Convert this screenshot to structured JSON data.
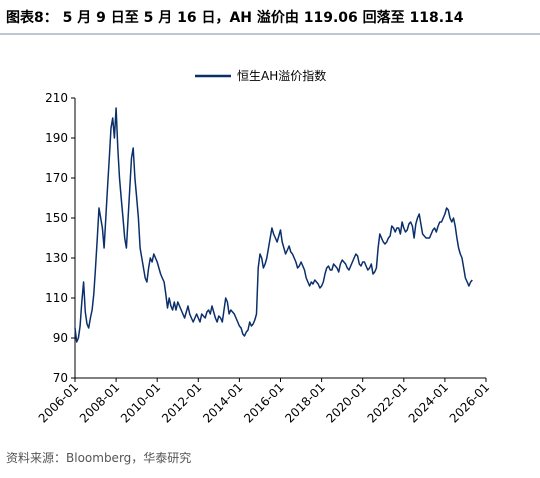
{
  "chart_data": {
    "type": "line",
    "title": "图表8： 5 月 9 日至 5 月 16 日，AH 溢价由 119.06 回落至 118.14",
    "source": "资料来源：Bloomberg，华泰研究",
    "x": [
      "2006-01",
      "2006-02",
      "2006-03",
      "2006-04",
      "2006-05",
      "2006-06",
      "2006-07",
      "2006-08",
      "2006-09",
      "2006-10",
      "2006-11",
      "2006-12",
      "2007-01",
      "2007-02",
      "2007-03",
      "2007-04",
      "2007-05",
      "2007-06",
      "2007-07",
      "2007-08",
      "2007-09",
      "2007-10",
      "2007-11",
      "2007-12",
      "2008-01",
      "2008-02",
      "2008-03",
      "2008-04",
      "2008-05",
      "2008-06",
      "2008-07",
      "2008-08",
      "2008-09",
      "2008-10",
      "2008-11",
      "2008-12",
      "2009-01",
      "2009-02",
      "2009-03",
      "2009-04",
      "2009-05",
      "2009-06",
      "2009-07",
      "2009-08",
      "2009-09",
      "2009-10",
      "2009-11",
      "2009-12",
      "2010-01",
      "2010-02",
      "2010-03",
      "2010-04",
      "2010-05",
      "2010-06",
      "2010-07",
      "2010-08",
      "2010-09",
      "2010-10",
      "2010-11",
      "2010-12",
      "2011-01",
      "2011-02",
      "2011-03",
      "2011-04",
      "2011-05",
      "2011-06",
      "2011-07",
      "2011-08",
      "2011-09",
      "2011-10",
      "2011-11",
      "2011-12",
      "2012-01",
      "2012-02",
      "2012-03",
      "2012-04",
      "2012-05",
      "2012-06",
      "2012-07",
      "2012-08",
      "2012-09",
      "2012-10",
      "2012-11",
      "2012-12",
      "2013-01",
      "2013-02",
      "2013-03",
      "2013-04",
      "2013-05",
      "2013-06",
      "2013-07",
      "2013-08",
      "2013-09",
      "2013-10",
      "2013-11",
      "2013-12",
      "2014-01",
      "2014-02",
      "2014-03",
      "2014-04",
      "2014-05",
      "2014-06",
      "2014-07",
      "2014-08",
      "2014-09",
      "2014-10",
      "2014-11",
      "2014-12",
      "2015-01",
      "2015-02",
      "2015-03",
      "2015-04",
      "2015-05",
      "2015-06",
      "2015-07",
      "2015-08",
      "2015-09",
      "2015-10",
      "2015-11",
      "2015-12",
      "2016-01",
      "2016-02",
      "2016-03",
      "2016-04",
      "2016-05",
      "2016-06",
      "2016-07",
      "2016-08",
      "2016-09",
      "2016-10",
      "2016-11",
      "2016-12",
      "2017-01",
      "2017-02",
      "2017-03",
      "2017-04",
      "2017-05",
      "2017-06",
      "2017-07",
      "2017-08",
      "2017-09",
      "2017-10",
      "2017-11",
      "2017-12",
      "2018-01",
      "2018-02",
      "2018-03",
      "2018-04",
      "2018-05",
      "2018-06",
      "2018-07",
      "2018-08",
      "2018-09",
      "2018-10",
      "2018-11",
      "2018-12",
      "2019-01",
      "2019-02",
      "2019-03",
      "2019-04",
      "2019-05",
      "2019-06",
      "2019-07",
      "2019-08",
      "2019-09",
      "2019-10",
      "2019-11",
      "2019-12",
      "2020-01",
      "2020-02",
      "2020-03",
      "2020-04",
      "2020-05",
      "2020-06",
      "2020-07",
      "2020-08",
      "2020-09",
      "2020-10",
      "2020-11",
      "2020-12",
      "2021-01",
      "2021-02",
      "2021-03",
      "2021-04",
      "2021-05",
      "2021-06",
      "2021-07",
      "2021-08",
      "2021-09",
      "2021-10",
      "2021-11",
      "2021-12",
      "2022-01",
      "2022-02",
      "2022-03",
      "2022-04",
      "2022-05",
      "2022-06",
      "2022-07",
      "2022-08",
      "2022-09",
      "2022-10",
      "2022-11",
      "2022-12",
      "2023-01",
      "2023-02",
      "2023-03",
      "2023-04",
      "2023-05",
      "2023-06",
      "2023-07",
      "2023-08",
      "2023-09",
      "2023-10",
      "2023-11",
      "2023-12",
      "2024-01",
      "2024-02",
      "2024-03",
      "2024-04",
      "2024-05",
      "2024-06",
      "2024-07",
      "2024-08",
      "2024-09",
      "2024-10",
      "2024-11",
      "2024-12",
      "2025-01",
      "2025-02",
      "2025-03",
      "2025-04",
      "2025-05"
    ],
    "series": [
      {
        "name": "恒生AH溢价指数",
        "color": "#0b2f6b",
        "values": [
          95,
          88,
          90,
          96,
          108,
          118,
          103,
          97,
          95,
          100,
          104,
          112,
          125,
          140,
          155,
          150,
          145,
          135,
          150,
          165,
          180,
          195,
          200,
          190,
          205,
          185,
          170,
          160,
          150,
          140,
          135,
          150,
          165,
          180,
          185,
          170,
          160,
          150,
          135,
          130,
          125,
          120,
          118,
          125,
          130,
          128,
          132,
          130,
          128,
          125,
          122,
          120,
          118,
          112,
          105,
          110,
          106,
          104,
          108,
          104,
          108,
          106,
          104,
          102,
          100,
          103,
          106,
          102,
          100,
          98,
          100,
          102,
          100,
          98,
          102,
          101,
          100,
          103,
          104,
          102,
          106,
          103,
          100,
          98,
          101,
          100,
          98,
          104,
          110,
          108,
          102,
          104,
          103,
          102,
          100,
          98,
          96,
          95,
          92,
          91,
          93,
          94,
          98,
          96,
          97,
          99,
          102,
          125,
          132,
          130,
          125,
          127,
          130,
          135,
          140,
          145,
          142,
          140,
          138,
          141,
          144,
          138,
          135,
          132,
          134,
          136,
          133,
          132,
          130,
          128,
          125,
          126,
          128,
          126,
          124,
          120,
          118,
          116,
          118,
          117,
          119,
          118,
          117,
          115,
          116,
          118,
          122,
          125,
          126,
          124,
          124,
          127,
          126,
          125,
          123,
          127,
          129,
          128,
          127,
          125,
          124,
          126,
          128,
          130,
          132,
          131,
          127,
          126,
          128,
          128,
          126,
          124,
          125,
          127,
          122,
          123,
          125,
          135,
          142,
          140,
          138,
          137,
          138,
          140,
          141,
          146,
          145,
          143,
          145,
          145,
          142,
          148,
          145,
          143,
          144,
          147,
          148,
          146,
          140,
          147,
          150,
          152,
          147,
          142,
          141,
          140,
          140,
          140,
          142,
          144,
          145,
          143,
          146,
          148,
          148,
          150,
          152,
          155,
          154,
          150,
          148,
          150,
          146,
          140,
          135,
          132,
          130,
          125,
          120,
          118,
          116,
          118,
          119
        ]
      }
    ],
    "xlim": [
      "2006-01",
      "2026-01"
    ],
    "xticks": [
      "2006-01",
      "2008-01",
      "2010-01",
      "2012-01",
      "2014-01",
      "2016-01",
      "2018-01",
      "2020-01",
      "2022-01",
      "2024-01",
      "2026-01"
    ],
    "ylim": [
      70,
      210
    ],
    "yticks": [
      70,
      90,
      110,
      130,
      150,
      170,
      190,
      210
    ],
    "legend": "top"
  }
}
